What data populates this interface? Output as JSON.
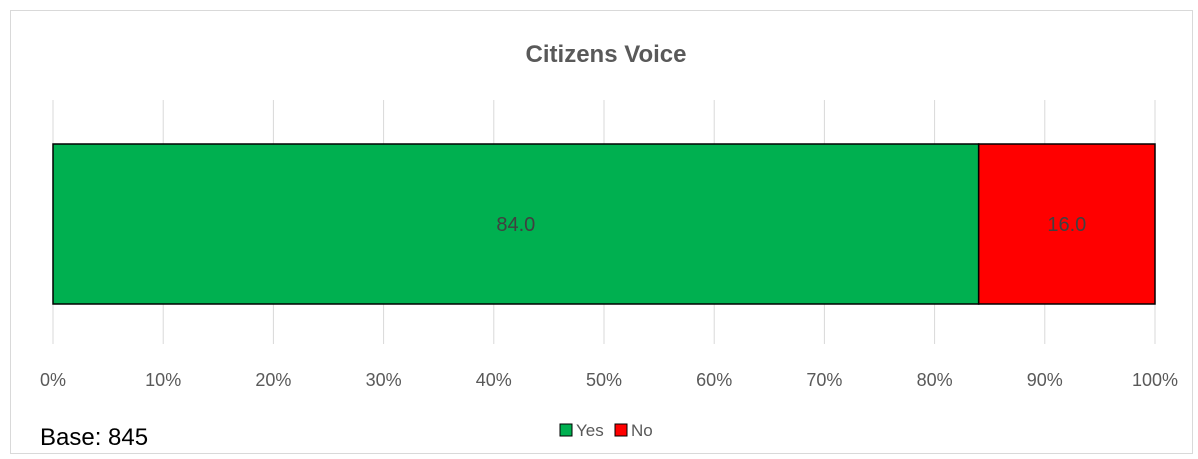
{
  "chart_data": {
    "type": "bar",
    "orientation": "horizontal",
    "stacked": true,
    "title": "Citizens Voice",
    "categories": [
      ""
    ],
    "series": [
      {
        "name": "Yes",
        "values": [
          84.0
        ],
        "color": "#00b050",
        "label": "84.0"
      },
      {
        "name": "No",
        "values": [
          16.0
        ],
        "color": "#ff0000",
        "label": "16.0"
      }
    ],
    "xlim": [
      0,
      100
    ],
    "xticks": [
      "0%",
      "10%",
      "20%",
      "30%",
      "40%",
      "50%",
      "60%",
      "70%",
      "80%",
      "90%",
      "100%"
    ],
    "grid": true,
    "legend_position": "bottom"
  },
  "footnote": "Base: 845"
}
